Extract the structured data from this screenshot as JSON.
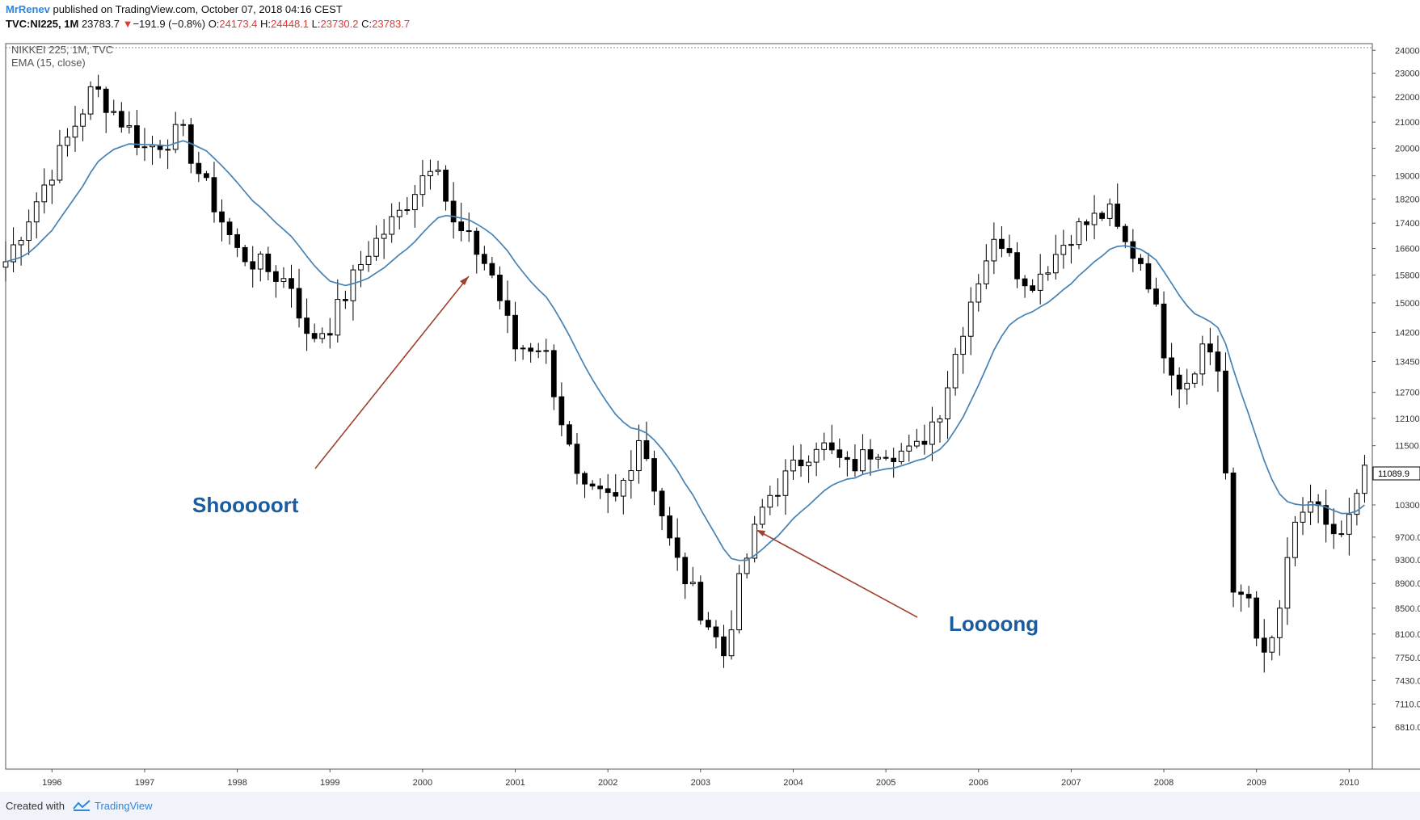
{
  "header": {
    "author": "MrRenev",
    "published_text": " published on TradingView.com, October 07, 2018 04:16 CEST",
    "symbol": "TVC:NI225, 1M",
    "price": "23783.7",
    "change_arrow": "▼",
    "change": "−191.9 (−0.8%)",
    "open_label": "O:",
    "open": "24173.4",
    "high_label": "H:",
    "high": "24448.1",
    "low_label": "L:",
    "low": "23730.2",
    "close_label": "C:",
    "close": "23783.7"
  },
  "legend": {
    "series_title": "NIKKEI 225, 1M, TVC",
    "indicator": "EMA (15, close)"
  },
  "footer": {
    "created_with": "Created with",
    "brand": "TradingView"
  },
  "colors": {
    "ema": "#4682b4",
    "arrow": "#a0412d",
    "annotation": "#1b5c9e",
    "up_body": "#ffffff",
    "down_body": "#000000"
  },
  "chart_data": {
    "type": "candlestick",
    "title": "NIKKEI 225, 1M, TVC",
    "y_scale": "log",
    "ylim": [
      6300,
      24300
    ],
    "xlim": [
      1995.5,
      2010.25
    ],
    "y_ticks": [
      "24000.0",
      "23000.0",
      "22000.0",
      "21000.0",
      "20000.0",
      "19000.0",
      "18200.0",
      "17400.0",
      "16600.0",
      "15800.0",
      "15000.0",
      "14200.0",
      "13450.0",
      "12700.0",
      "12100.0",
      "11500.0",
      "10900.0",
      "10300.0",
      "9700.0",
      "9300.0",
      "8900.0",
      "8500.0",
      "8100.0",
      "7750.0",
      "7430.0",
      "7110.0",
      "6810.0"
    ],
    "x_ticks": [
      1996,
      1997,
      1998,
      1999,
      2000,
      2001,
      2002,
      2003,
      2004,
      2005,
      2006,
      2007,
      2008,
      2009,
      2010
    ],
    "last_price_label": "11089.9",
    "grid": false,
    "key_points": [
      {
        "t": 1995.5,
        "close": 16200
      },
      {
        "t": 1996.45,
        "close": 22400
      },
      {
        "t": 1997.0,
        "close": 20000
      },
      {
        "t": 1997.4,
        "close": 20600
      },
      {
        "t": 1997.6,
        "close": 19000
      },
      {
        "t": 1998.0,
        "close": 16500
      },
      {
        "t": 1998.6,
        "close": 15500
      },
      {
        "t": 1998.75,
        "close": 14000
      },
      {
        "t": 1999.0,
        "close": 14400
      },
      {
        "t": 1999.4,
        "close": 16500
      },
      {
        "t": 1999.75,
        "close": 17700
      },
      {
        "t": 2000.15,
        "close": 19900
      },
      {
        "t": 2000.3,
        "close": 17400
      },
      {
        "t": 2000.6,
        "close": 16500
      },
      {
        "t": 2000.75,
        "close": 15800
      },
      {
        "t": 2001.0,
        "close": 13800
      },
      {
        "t": 2001.3,
        "close": 13900
      },
      {
        "t": 2001.7,
        "close": 10500
      },
      {
        "t": 2002.1,
        "close": 10400
      },
      {
        "t": 2002.35,
        "close": 11800
      },
      {
        "t": 2002.7,
        "close": 9400
      },
      {
        "t": 2003.0,
        "close": 8500
      },
      {
        "t": 2003.25,
        "close": 7800
      },
      {
        "t": 2003.45,
        "close": 9100
      },
      {
        "t": 2003.7,
        "close": 10400
      },
      {
        "t": 2004.0,
        "close": 11000
      },
      {
        "t": 2004.25,
        "close": 11600
      },
      {
        "t": 2004.6,
        "close": 11000
      },
      {
        "t": 2004.9,
        "close": 11500
      },
      {
        "t": 2005.3,
        "close": 11300
      },
      {
        "t": 2005.6,
        "close": 12400
      },
      {
        "t": 2005.9,
        "close": 15000
      },
      {
        "t": 2006.1,
        "close": 16500
      },
      {
        "t": 2006.3,
        "close": 17000
      },
      {
        "t": 2006.5,
        "close": 15400
      },
      {
        "t": 2006.8,
        "close": 16300
      },
      {
        "t": 2007.0,
        "close": 17100
      },
      {
        "t": 2007.4,
        "close": 17800
      },
      {
        "t": 2007.55,
        "close": 16800
      },
      {
        "t": 2007.8,
        "close": 16100
      },
      {
        "t": 2008.0,
        "close": 13800
      },
      {
        "t": 2008.2,
        "close": 12800
      },
      {
        "t": 2008.45,
        "close": 14000
      },
      {
        "t": 2008.6,
        "close": 13200
      },
      {
        "t": 2008.75,
        "close": 8600
      },
      {
        "t": 2008.9,
        "close": 8800
      },
      {
        "t": 2009.1,
        "close": 7600
      },
      {
        "t": 2009.25,
        "close": 8500
      },
      {
        "t": 2009.45,
        "close": 10200
      },
      {
        "t": 2009.7,
        "close": 10100
      },
      {
        "t": 2009.9,
        "close": 9600
      },
      {
        "t": 2010.1,
        "close": 10400
      },
      {
        "t": 2010.2,
        "close": 11090
      }
    ]
  },
  "annotations": [
    {
      "label": "Shooooort"
    },
    {
      "label": "Loooong"
    }
  ]
}
